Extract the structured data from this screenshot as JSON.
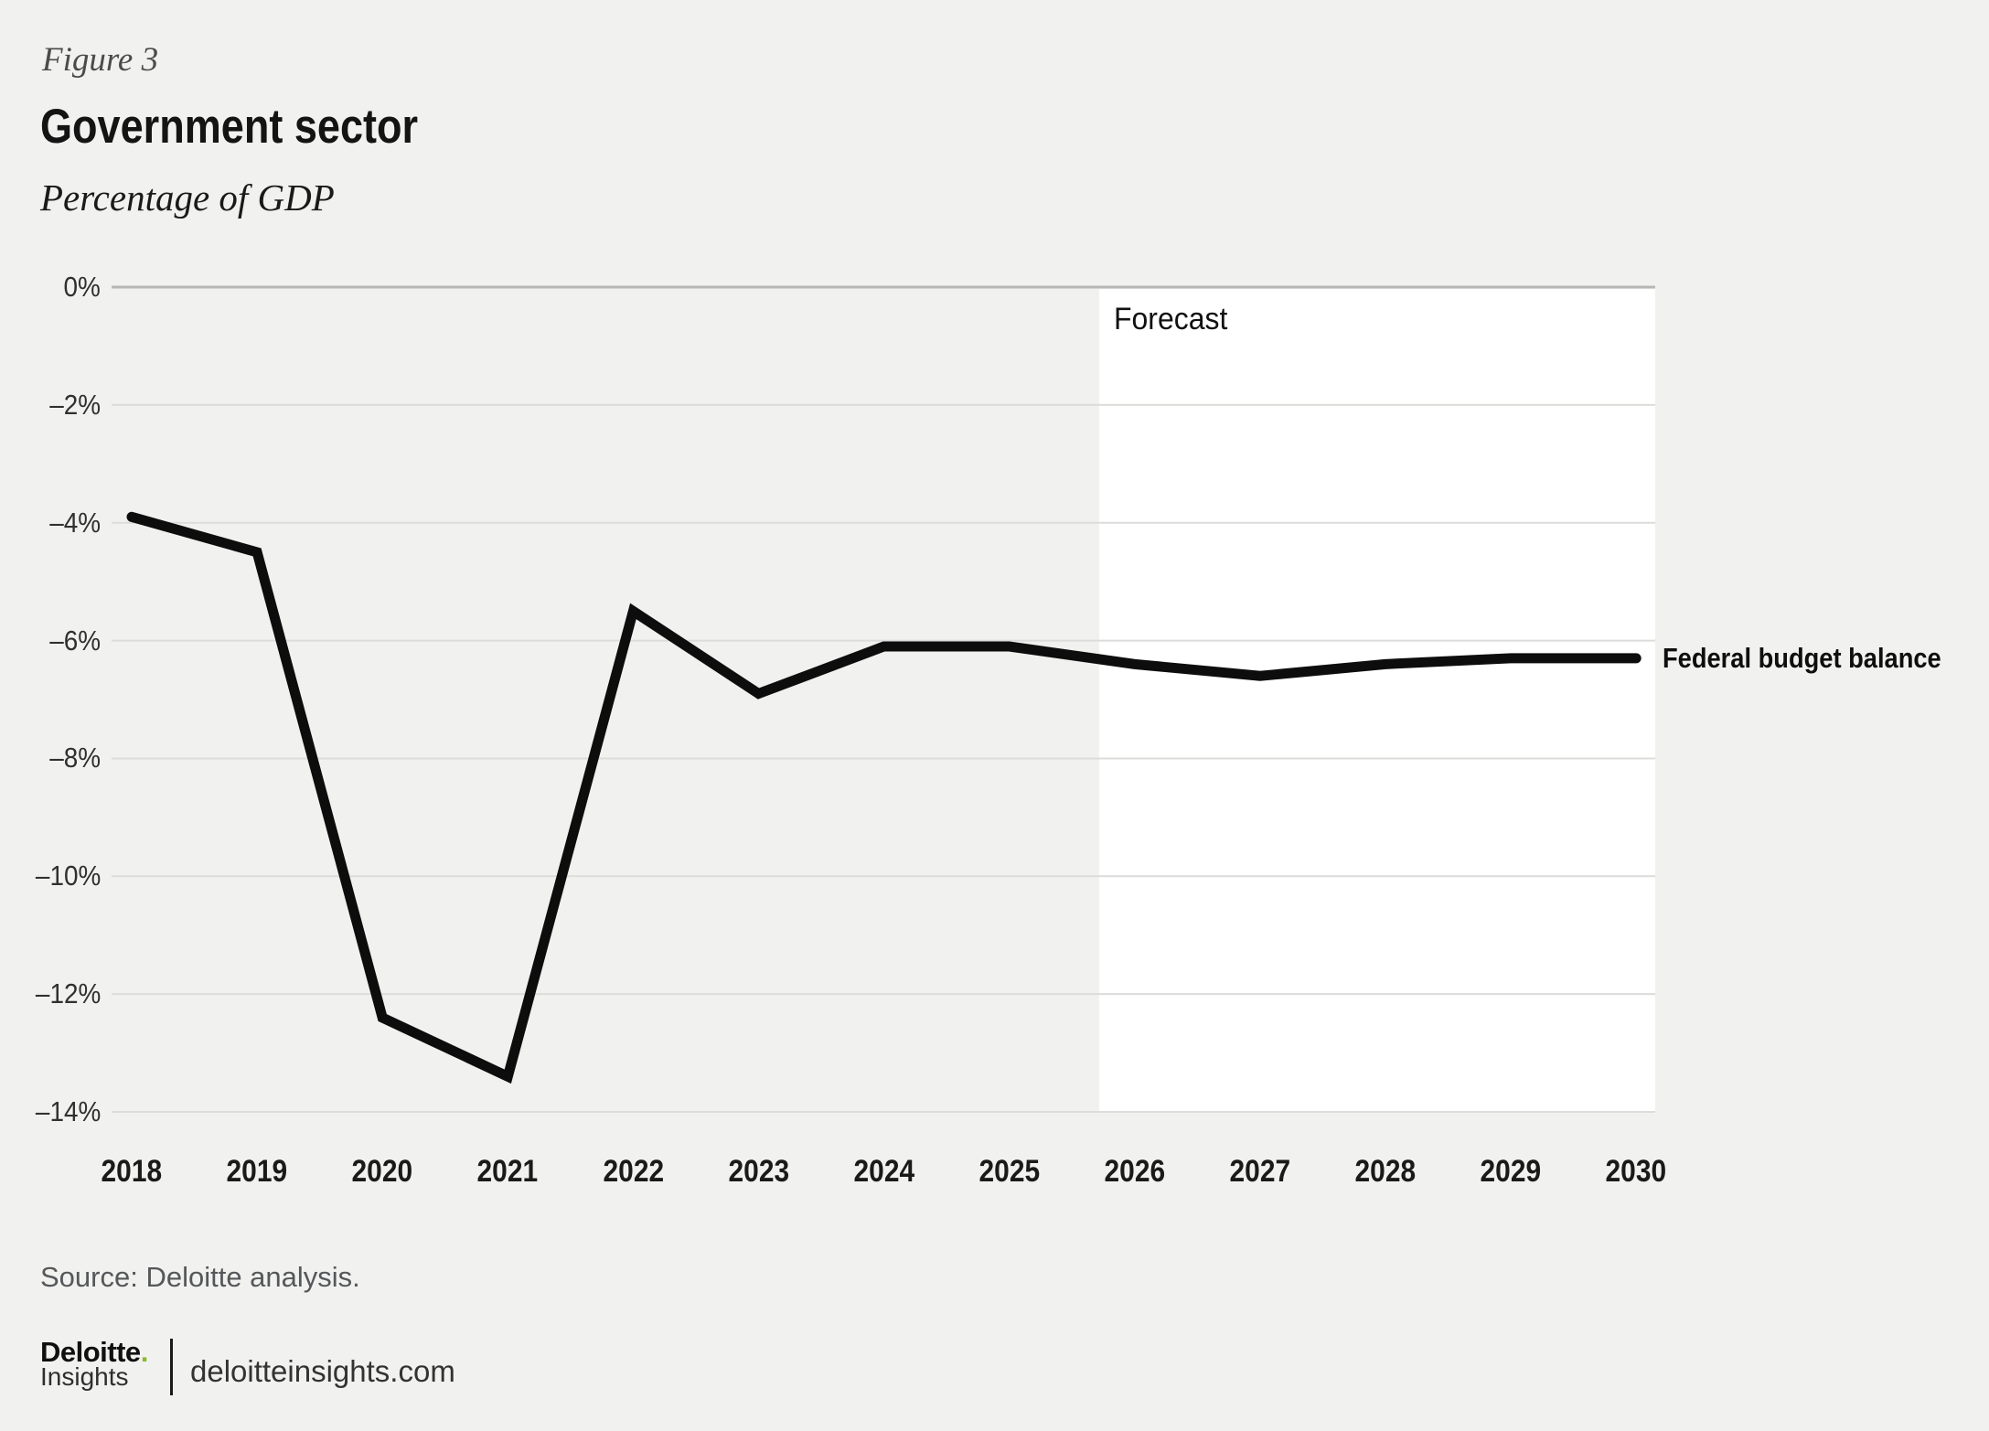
{
  "figure": {
    "label": "Figure 3",
    "title": "Government sector",
    "subtitle": "Percentage of GDP"
  },
  "chart_data": {
    "type": "line",
    "x": [
      2018,
      2019,
      2020,
      2021,
      2022,
      2023,
      2024,
      2025,
      2026,
      2027,
      2028,
      2029,
      2030
    ],
    "series": [
      {
        "name": "Federal budget balance",
        "values": [
          -3.9,
          -4.5,
          -12.4,
          -13.4,
          -5.5,
          -6.9,
          -6.1,
          -6.1,
          -6.4,
          -6.6,
          -6.4,
          -6.3,
          -6.3
        ]
      }
    ],
    "title": "Government sector",
    "xlabel": "",
    "ylabel": "Percentage of GDP",
    "ylim": [
      -14,
      0
    ],
    "yticks": [
      "0%",
      "–2%",
      "–4%",
      "–6%",
      "–8%",
      "–10%",
      "–12%",
      "–14%"
    ],
    "ytick_values": [
      0,
      -2,
      -4,
      -6,
      -8,
      -10,
      -12,
      -14
    ],
    "grid": "horizontal",
    "legend_position": "right-of-line-end",
    "forecast_label": "Forecast",
    "forecast_start_after": 2025
  },
  "footer": {
    "source": "Source: Deloitte analysis.",
    "logo_primary": "Deloitte",
    "logo_dot": ".",
    "logo_secondary": "Insights",
    "website": "deloitteinsights.com"
  },
  "colors": {
    "background": "#f1f1ef",
    "forecast_band": "#ffffff",
    "grid": "#dcdcda",
    "grid_zero": "#b7b8b5",
    "line": "#0d0d0d",
    "accent_green": "#86bc25",
    "text_primary": "#1a1a1a",
    "text_secondary": "#55575a"
  }
}
